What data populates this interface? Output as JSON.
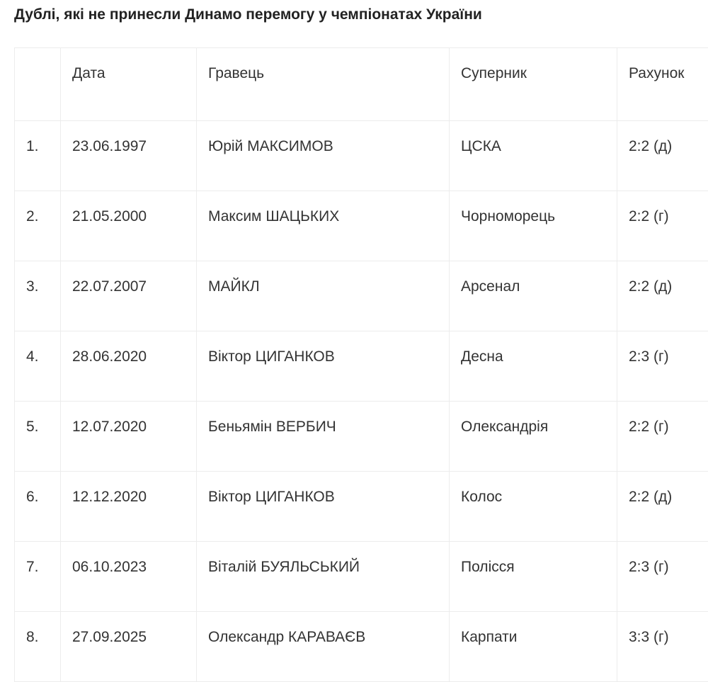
{
  "title": "Дублі, які не принесли Динамо перемогу у чемпіонатах України",
  "table": {
    "headers": [
      "",
      "Дата",
      "Гравець",
      "Суперник",
      "Рахунок"
    ],
    "rows": [
      [
        "1.",
        "23.06.1997",
        "Юрій МАКСИМОВ",
        "ЦСКА",
        "2:2 (д)"
      ],
      [
        "2.",
        "21.05.2000",
        "Максим ШАЦЬКИХ",
        "Чорноморець",
        "2:2 (г)"
      ],
      [
        "3.",
        "22.07.2007",
        "МАЙКЛ",
        "Арсенал",
        "2:2 (д)"
      ],
      [
        "4.",
        "28.06.2020",
        "Віктор ЦИГАНКОВ",
        "Десна",
        "2:3 (г)"
      ],
      [
        "5.",
        "12.07.2020",
        "Беньямін ВЕРБИЧ",
        "Олександрія",
        "2:2 (г)"
      ],
      [
        "6.",
        "12.12.2020",
        "Віктор ЦИГАНКОВ",
        "Колос",
        "2:2 (д)"
      ],
      [
        "7.",
        "06.10.2023",
        "Віталій БУЯЛЬСЬКИЙ",
        "Полісся",
        "2:3 (г)"
      ],
      [
        "8.",
        "27.09.2025",
        "Олександр КАРАВАЄВ",
        "Карпати",
        "3:3 (г)"
      ]
    ]
  }
}
